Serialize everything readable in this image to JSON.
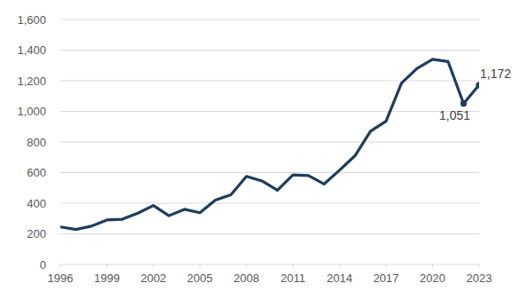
{
  "chart_data": {
    "type": "line",
    "x": [
      1996,
      1997,
      1998,
      1999,
      2000,
      2001,
      2002,
      2003,
      2004,
      2005,
      2006,
      2007,
      2008,
      2009,
      2010,
      2011,
      2012,
      2013,
      2014,
      2015,
      2016,
      2017,
      2018,
      2019,
      2020,
      2021,
      2022,
      2023
    ],
    "values": [
      245,
      228,
      250,
      290,
      295,
      335,
      385,
      318,
      360,
      338,
      420,
      455,
      575,
      545,
      485,
      585,
      580,
      525,
      615,
      710,
      870,
      935,
      1185,
      1280,
      1340,
      1325,
      1051,
      1172
    ],
    "color": "#1f3d5c",
    "xlim": [
      1996,
      2023
    ],
    "xticks": [
      1996,
      1999,
      2002,
      2005,
      2008,
      2011,
      2014,
      2017,
      2020,
      2023
    ],
    "ylim": [
      0,
      1600
    ],
    "yticks": [
      0,
      {
        "value": 200,
        "label": "200"
      },
      400,
      600,
      800,
      {
        "value": 1000,
        "label": "1,000"
      },
      {
        "value": 1200,
        "label": "1,200"
      },
      {
        "value": 1400,
        "label": "1,400"
      },
      {
        "value": 1600,
        "label": "1,600"
      }
    ],
    "grid": true,
    "annotations": [
      {
        "x": 2022,
        "value": 1051,
        "label": "1,051"
      },
      {
        "x": 2023,
        "value": 1172,
        "label": "1,172"
      }
    ]
  }
}
